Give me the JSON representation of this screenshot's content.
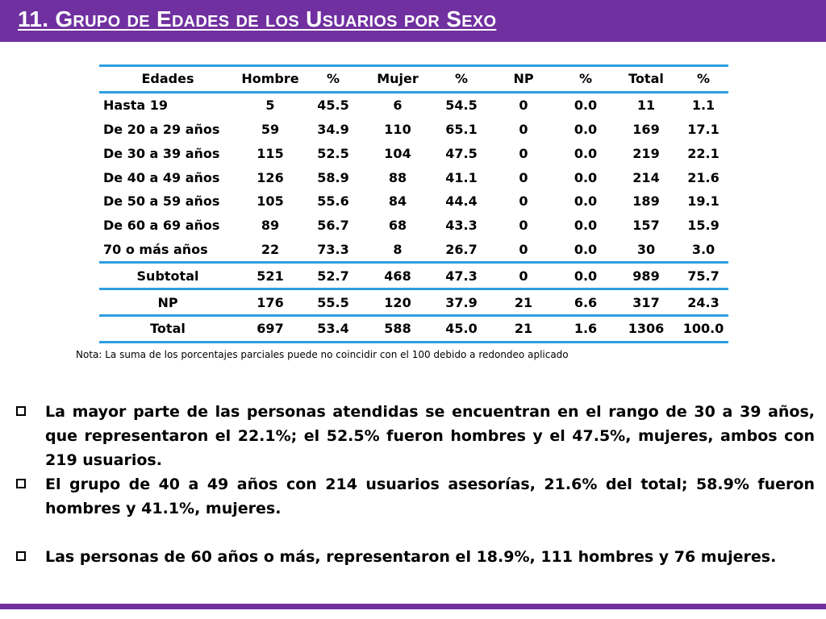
{
  "title": "11. Grupo de  Edades de los Usuarios por Sexo",
  "colors": {
    "accent": "#7030a0",
    "rule": "#2e9ee0"
  },
  "table": {
    "headers": [
      "Edades",
      "Hombre",
      "%",
      "Mujer",
      "%",
      "NP",
      "%",
      "Total",
      "%"
    ],
    "rows": [
      [
        "Hasta 19",
        "5",
        "45.5",
        "6",
        "54.5",
        "0",
        "0.0",
        "11",
        "1.1"
      ],
      [
        "De 20 a 29 años",
        "59",
        "34.9",
        "110",
        "65.1",
        "0",
        "0.0",
        "169",
        "17.1"
      ],
      [
        "De 30 a 39 años",
        "115",
        "52.5",
        "104",
        "47.5",
        "0",
        "0.0",
        "219",
        "22.1"
      ],
      [
        "De 40 a 49 años",
        "126",
        "58.9",
        "88",
        "41.1",
        "0",
        "0.0",
        "214",
        "21.6"
      ],
      [
        "De 50 a 59 años",
        "105",
        "55.6",
        "84",
        "44.4",
        "0",
        "0.0",
        "189",
        "19.1"
      ],
      [
        "De 60 a 69 años",
        "89",
        "56.7",
        "68",
        "43.3",
        "0",
        "0.0",
        "157",
        "15.9"
      ],
      [
        "70 o más años",
        "22",
        "73.3",
        "8",
        "26.7",
        "0",
        "0.0",
        "30",
        "3.0"
      ]
    ],
    "summary_rows": [
      [
        "Subtotal",
        "521",
        "52.7",
        "468",
        "47.3",
        "0",
        "0.0",
        "989",
        "75.7"
      ],
      [
        "NP",
        "176",
        "55.5",
        "120",
        "37.9",
        "21",
        "6.6",
        "317",
        "24.3"
      ],
      [
        "Total",
        "697",
        "53.4",
        "588",
        "45.0",
        "21",
        "1.6",
        "1306",
        "100.0"
      ]
    ]
  },
  "note": "Nota: La suma de los porcentajes parciales puede no coincidir con el 100 debido a redondeo aplicado",
  "bullets": [
    "La mayor parte de las personas atendidas se encuentran en el rango de 30 a 39 años, que representaron el 22.1%; el 52.5% fueron hombres y el 47.5%, mujeres, ambos con 219 usuarios.",
    "El grupo de 40 a 49 años con 214 usuarios asesorías, 21.6% del total; 58.9% fueron hombres y 41.1%, mujeres.",
    "Las personas de 60 años o más, representaron el 18.9%, 111 hombres y 76 mujeres."
  ]
}
